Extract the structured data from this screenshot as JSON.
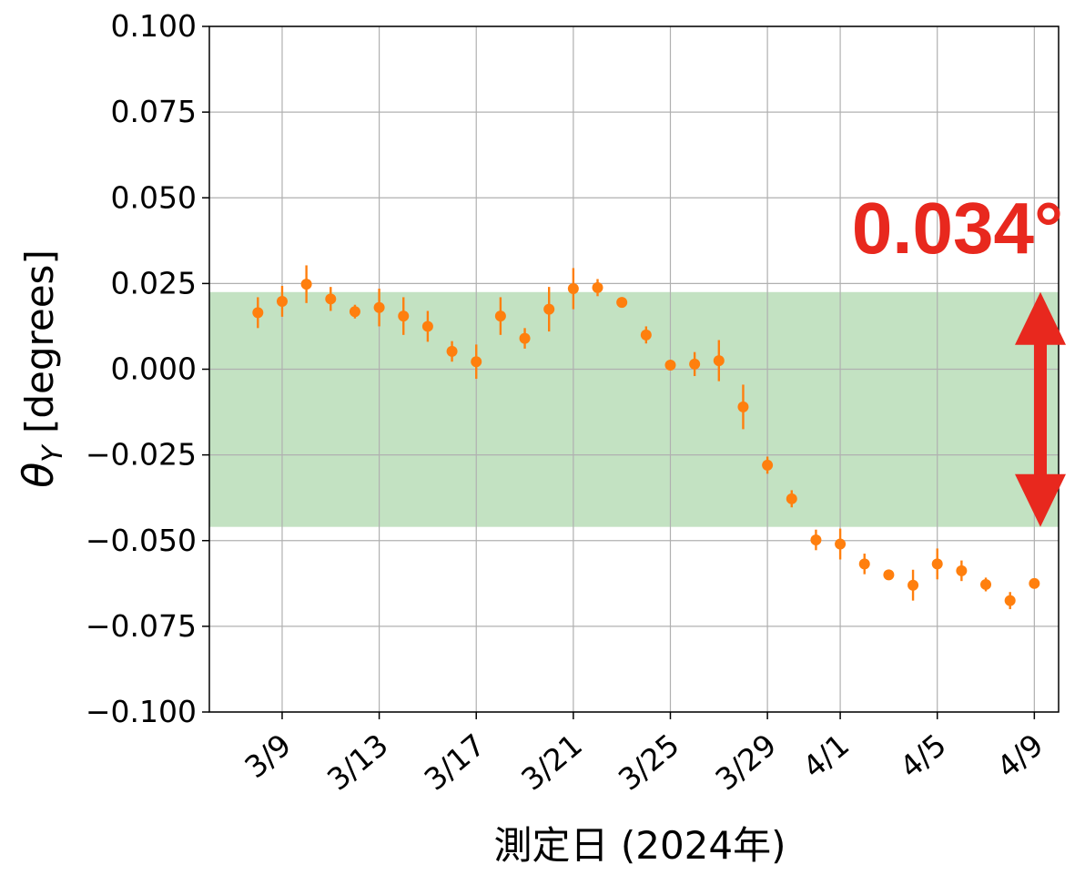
{
  "chart_data": {
    "type": "scatter",
    "xlabel": "測定日 (2024年)",
    "ylabel_main": "θ",
    "ylabel_sub": "Y",
    "ylabel_unit": " [degrees]",
    "ylim": [
      -0.1,
      0.1
    ],
    "yticks": [
      0.1,
      0.075,
      0.05,
      0.025,
      0.0,
      -0.025,
      -0.05,
      -0.075,
      -0.1
    ],
    "ytick_labels": [
      "0.100",
      "0.075",
      "0.050",
      "0.025",
      "0.000",
      "−0.025",
      "−0.050",
      "−0.075",
      "−0.100"
    ],
    "xlim": [
      "2024-03-06",
      "2024-04-10"
    ],
    "xticks": [
      "2024-03-09",
      "2024-03-13",
      "2024-03-17",
      "2024-03-21",
      "2024-03-25",
      "2024-03-29",
      "2024-04-01",
      "2024-04-05",
      "2024-04-09"
    ],
    "xtick_labels": [
      "3/9",
      "3/13",
      "3/17",
      "3/21",
      "3/25",
      "3/29",
      "4/1",
      "4/5",
      "4/9"
    ],
    "grid": true,
    "band": {
      "y_low": -0.046,
      "y_high": 0.0225,
      "color": "#c3e2c2"
    },
    "marker_color": "#ff7f0e",
    "points": [
      {
        "x": "2024-03-08",
        "y": 0.0165,
        "err": 0.0045
      },
      {
        "x": "2024-03-09",
        "y": 0.0198,
        "err": 0.0045
      },
      {
        "x": "2024-03-10",
        "y": 0.0248,
        "err": 0.0055
      },
      {
        "x": "2024-03-11",
        "y": 0.0205,
        "err": 0.0035
      },
      {
        "x": "2024-03-12",
        "y": 0.0168,
        "err": 0.002
      },
      {
        "x": "2024-03-13",
        "y": 0.018,
        "err": 0.0055
      },
      {
        "x": "2024-03-14",
        "y": 0.0155,
        "err": 0.0055
      },
      {
        "x": "2024-03-15",
        "y": 0.0125,
        "err": 0.0045
      },
      {
        "x": "2024-03-16",
        "y": 0.0052,
        "err": 0.003
      },
      {
        "x": "2024-03-17",
        "y": 0.0022,
        "err": 0.005
      },
      {
        "x": "2024-03-18",
        "y": 0.0155,
        "err": 0.0055
      },
      {
        "x": "2024-03-19",
        "y": 0.009,
        "err": 0.003
      },
      {
        "x": "2024-03-20",
        "y": 0.0175,
        "err": 0.0065
      },
      {
        "x": "2024-03-21",
        "y": 0.0235,
        "err": 0.006
      },
      {
        "x": "2024-03-22",
        "y": 0.0238,
        "err": 0.0025
      },
      {
        "x": "2024-03-23",
        "y": 0.0195,
        "err": 0.001
      },
      {
        "x": "2024-03-24",
        "y": 0.01,
        "err": 0.0025
      },
      {
        "x": "2024-03-25",
        "y": 0.0012,
        "err": 0.0012
      },
      {
        "x": "2024-03-26",
        "y": 0.0015,
        "err": 0.0035
      },
      {
        "x": "2024-03-27",
        "y": 0.0025,
        "err": 0.006
      },
      {
        "x": "2024-03-28",
        "y": -0.011,
        "err": 0.0065
      },
      {
        "x": "2024-03-29",
        "y": -0.028,
        "err": 0.0025
      },
      {
        "x": "2024-03-30",
        "y": -0.0378,
        "err": 0.0025
      },
      {
        "x": "2024-03-31",
        "y": -0.0498,
        "err": 0.003
      },
      {
        "x": "2024-04-01",
        "y": -0.051,
        "err": 0.0045
      },
      {
        "x": "2024-04-02",
        "y": -0.0568,
        "err": 0.003
      },
      {
        "x": "2024-04-03",
        "y": -0.06,
        "err": 0.001
      },
      {
        "x": "2024-04-04",
        "y": -0.063,
        "err": 0.0045
      },
      {
        "x": "2024-04-05",
        "y": -0.0568,
        "err": 0.0045
      },
      {
        "x": "2024-04-06",
        "y": -0.0588,
        "err": 0.003
      },
      {
        "x": "2024-04-07",
        "y": -0.0628,
        "err": 0.002
      },
      {
        "x": "2024-04-08",
        "y": -0.0675,
        "err": 0.0025
      },
      {
        "x": "2024-04-09",
        "y": -0.0625,
        "err": 0.0015
      }
    ],
    "annotation": {
      "text": "0.034°",
      "color": "#e8281e"
    }
  }
}
